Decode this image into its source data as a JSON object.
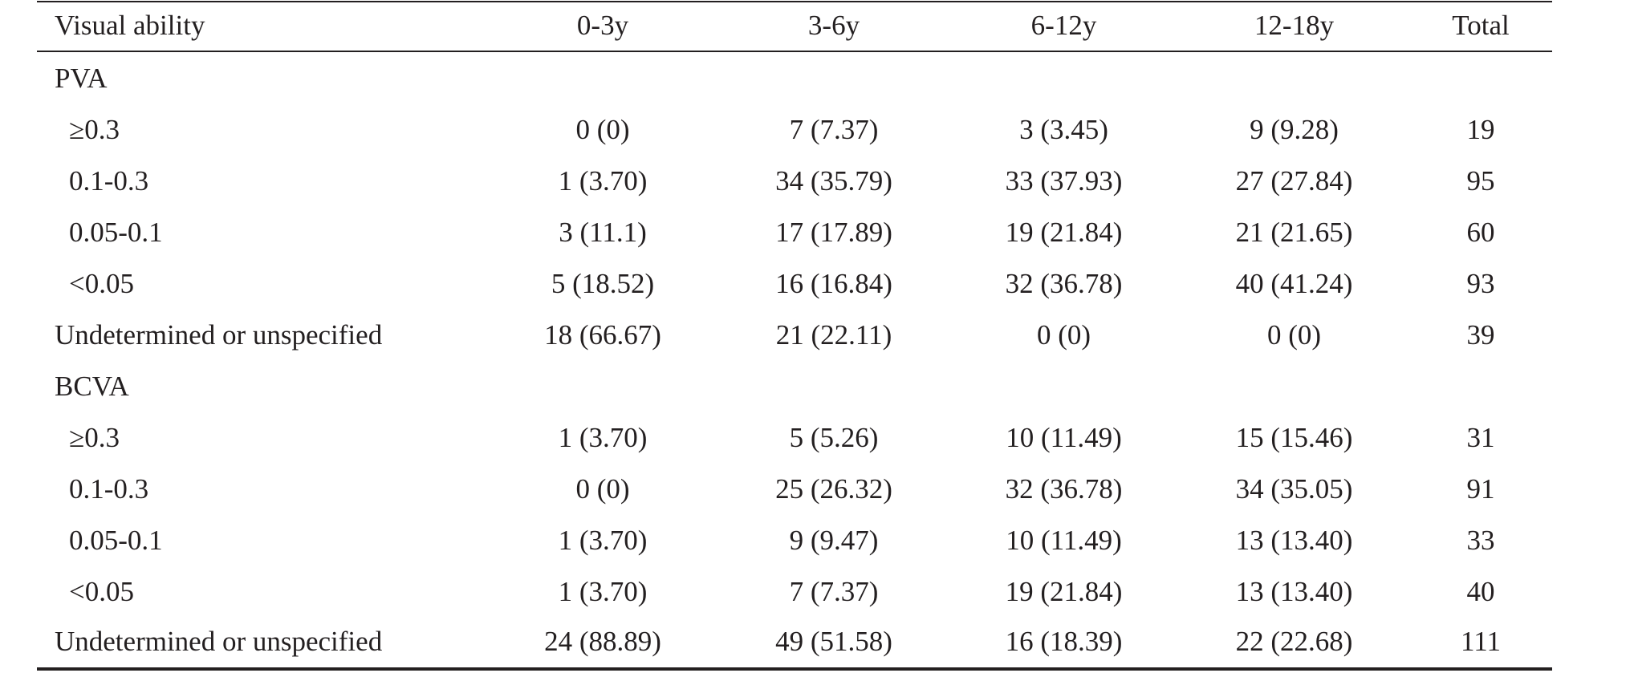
{
  "table": {
    "headers": [
      "Visual ability",
      "0-3y",
      "3-6y",
      "6-12y",
      "12-18y",
      "Total"
    ],
    "rows": [
      [
        "PVA",
        "",
        "",
        "",
        "",
        ""
      ],
      [
        "≥0.3",
        "0 (0)",
        "7 (7.37)",
        "3 (3.45)",
        "9 (9.28)",
        "19"
      ],
      [
        "0.1-0.3",
        "1 (3.70)",
        "34 (35.79)",
        "33 (37.93)",
        "27 (27.84)",
        "95"
      ],
      [
        "0.05-0.1",
        "3 (11.1)",
        "17 (17.89)",
        "19 (21.84)",
        "21 (21.65)",
        "60"
      ],
      [
        "<0.05",
        "5 (18.52)",
        "16 (16.84)",
        "32 (36.78)",
        "40 (41.24)",
        "93"
      ],
      [
        "Undetermined or unspecified",
        "18 (66.67)",
        "21 (22.11)",
        "0 (0)",
        "0 (0)",
        "39"
      ],
      [
        "BCVA",
        "",
        "",
        "",
        "",
        ""
      ],
      [
        "≥0.3",
        "1 (3.70)",
        "5 (5.26)",
        "10 (11.49)",
        "15 (15.46)",
        "31"
      ],
      [
        "0.1-0.3",
        "0 (0)",
        "25 (26.32)",
        "32 (36.78)",
        "34 (35.05)",
        "91"
      ],
      [
        "0.05-0.1",
        "1 (3.70)",
        "9 (9.47)",
        "10 (11.49)",
        "13 (13.40)",
        "33"
      ],
      [
        "<0.05",
        "1 (3.70)",
        "7 (7.37)",
        "19 (21.84)",
        "13 (13.40)",
        "40"
      ],
      [
        "Undetermined or unspecified",
        "24 (88.89)",
        "49 (51.58)",
        "16 (18.39)",
        "22 (22.68)",
        "111"
      ]
    ]
  }
}
